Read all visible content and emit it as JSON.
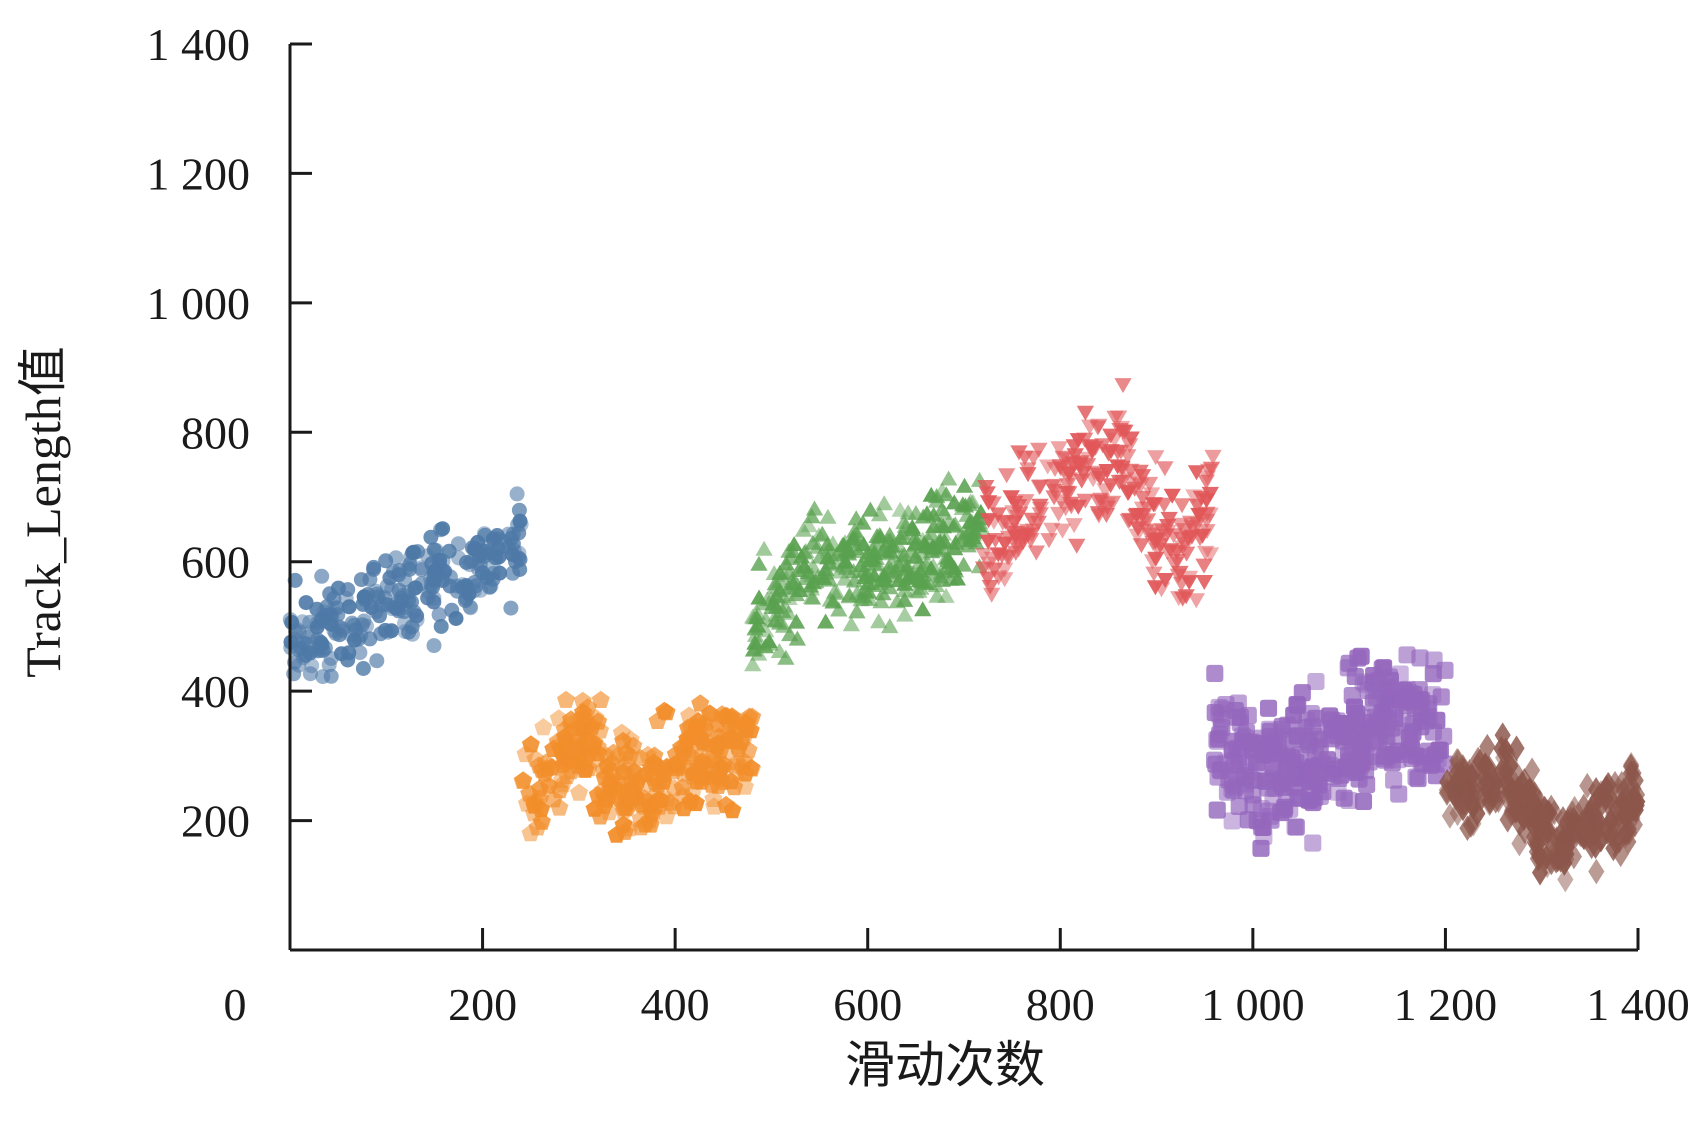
{
  "chart_data": {
    "type": "scatter",
    "title": "",
    "xlabel": "滑动次数",
    "ylabel": "Track_Length值",
    "xlim": [
      0,
      1400
    ],
    "ylim": [
      0,
      1400
    ],
    "x_ticks": [
      0,
      200,
      400,
      600,
      800,
      1000,
      1200,
      1400
    ],
    "x_tick_labels": [
      "0",
      "200",
      "400",
      "600",
      "800",
      "1 000",
      "1 200",
      "1 400"
    ],
    "y_ticks": [
      200,
      400,
      600,
      800,
      1000,
      1200,
      1400
    ],
    "y_tick_labels": [
      "200",
      "400",
      "600",
      "800",
      "1 000",
      "1 200",
      "1 400"
    ],
    "grid": false,
    "legend": "none",
    "series": [
      {
        "marker": "circle",
        "color": "#4e79a7",
        "x_range": [
          0,
          240
        ],
        "trend": [
          [
            0,
            470
          ],
          [
            240,
            630
          ]
        ],
        "spread": 150,
        "count": 260
      },
      {
        "marker": "pentagon",
        "color": "#f28e2b",
        "x_range": [
          240,
          480
        ],
        "trend": [
          [
            240,
            230
          ],
          [
            300,
            320
          ],
          [
            360,
            230
          ],
          [
            420,
            300
          ],
          [
            480,
            320
          ]
        ],
        "spread": 170,
        "count": 320
      },
      {
        "marker": "triangle-up",
        "color": "#59a14f",
        "x_range": [
          480,
          720
        ],
        "trend": [
          [
            480,
            480
          ],
          [
            530,
            580
          ],
          [
            600,
            590
          ],
          [
            720,
            650
          ]
        ],
        "spread": 170,
        "count": 340
      },
      {
        "marker": "triangle-down",
        "color": "#e15759",
        "x_range": [
          720,
          960
        ],
        "trend": [
          [
            720,
            620
          ],
          [
            800,
            720
          ],
          [
            860,
            770
          ],
          [
            920,
            590
          ],
          [
            960,
            700
          ]
        ],
        "spread": 200,
        "count": 260
      },
      {
        "marker": "square",
        "color": "#9467bd",
        "x_range": [
          960,
          1200
        ],
        "trend": [
          [
            960,
            330
          ],
          [
            1020,
            260
          ],
          [
            1080,
            300
          ],
          [
            1140,
            360
          ],
          [
            1200,
            330
          ]
        ],
        "spread": 210,
        "count": 360
      },
      {
        "marker": "diamond",
        "color": "#8c564b",
        "x_range": [
          1200,
          1400
        ],
        "trend": [
          [
            1200,
            250
          ],
          [
            1260,
            260
          ],
          [
            1320,
            160
          ],
          [
            1400,
            240
          ]
        ],
        "spread": 130,
        "count": 320
      }
    ]
  }
}
